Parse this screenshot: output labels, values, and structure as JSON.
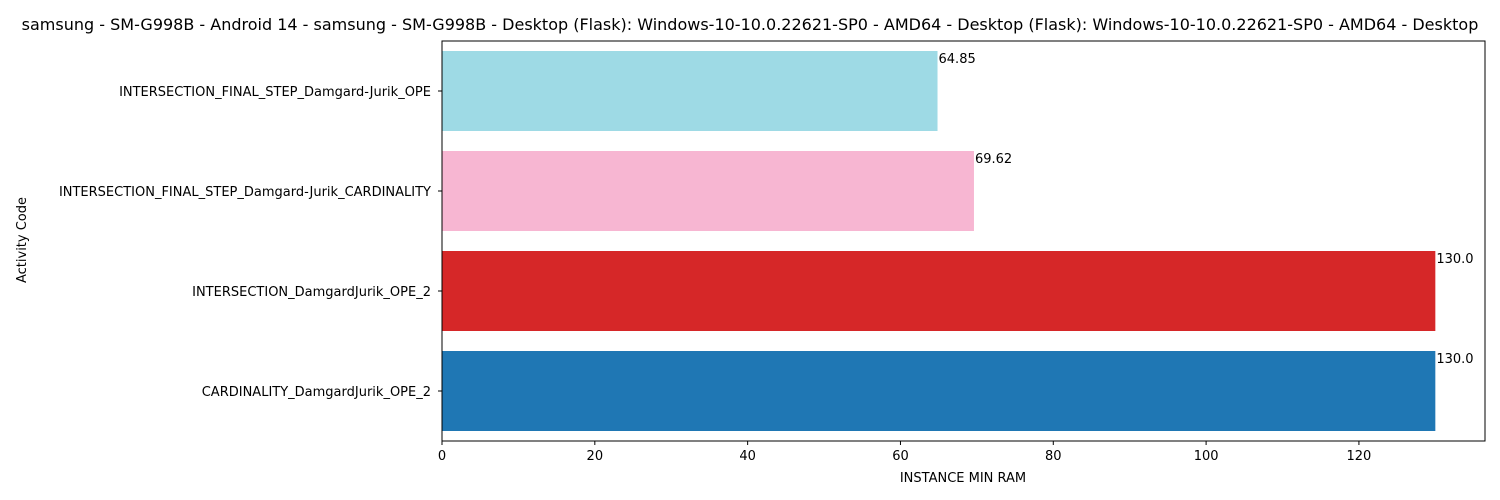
{
  "chart_data": {
    "type": "bar",
    "orientation": "horizontal",
    "title": "samsung - SM-G998B - Android 14 - samsung - SM-G998B - Desktop (Flask): Windows-10-10.0.22621-SP0 - AMD64 - Desktop (Flask): Windows-10-10.0.22621-SP0 - AMD64 - Desktop",
    "xlabel": "INSTANCE MIN RAM",
    "ylabel": "Activity Code",
    "categories": [
      "CARDINALITY_DamgardJurik_OPE_2",
      "INTERSECTION_DamgardJurik_OPE_2",
      "INTERSECTION_FINAL_STEP_Damgard-Jurik_CARDINALITY",
      "INTERSECTION_FINAL_STEP_Damgard-Jurik_OPE"
    ],
    "values": [
      130.0,
      130.0,
      69.62,
      64.85
    ],
    "value_labels": [
      "130.0",
      "130.0",
      "69.62",
      "64.85"
    ],
    "colors": [
      "#1f77b4",
      "#d62728",
      "#f7b6d2",
      "#9edae5"
    ],
    "xlim": [
      0,
      136.5
    ],
    "xticks": [
      0,
      20,
      40,
      60,
      80,
      100,
      120
    ],
    "grid": false,
    "legend": "none"
  }
}
